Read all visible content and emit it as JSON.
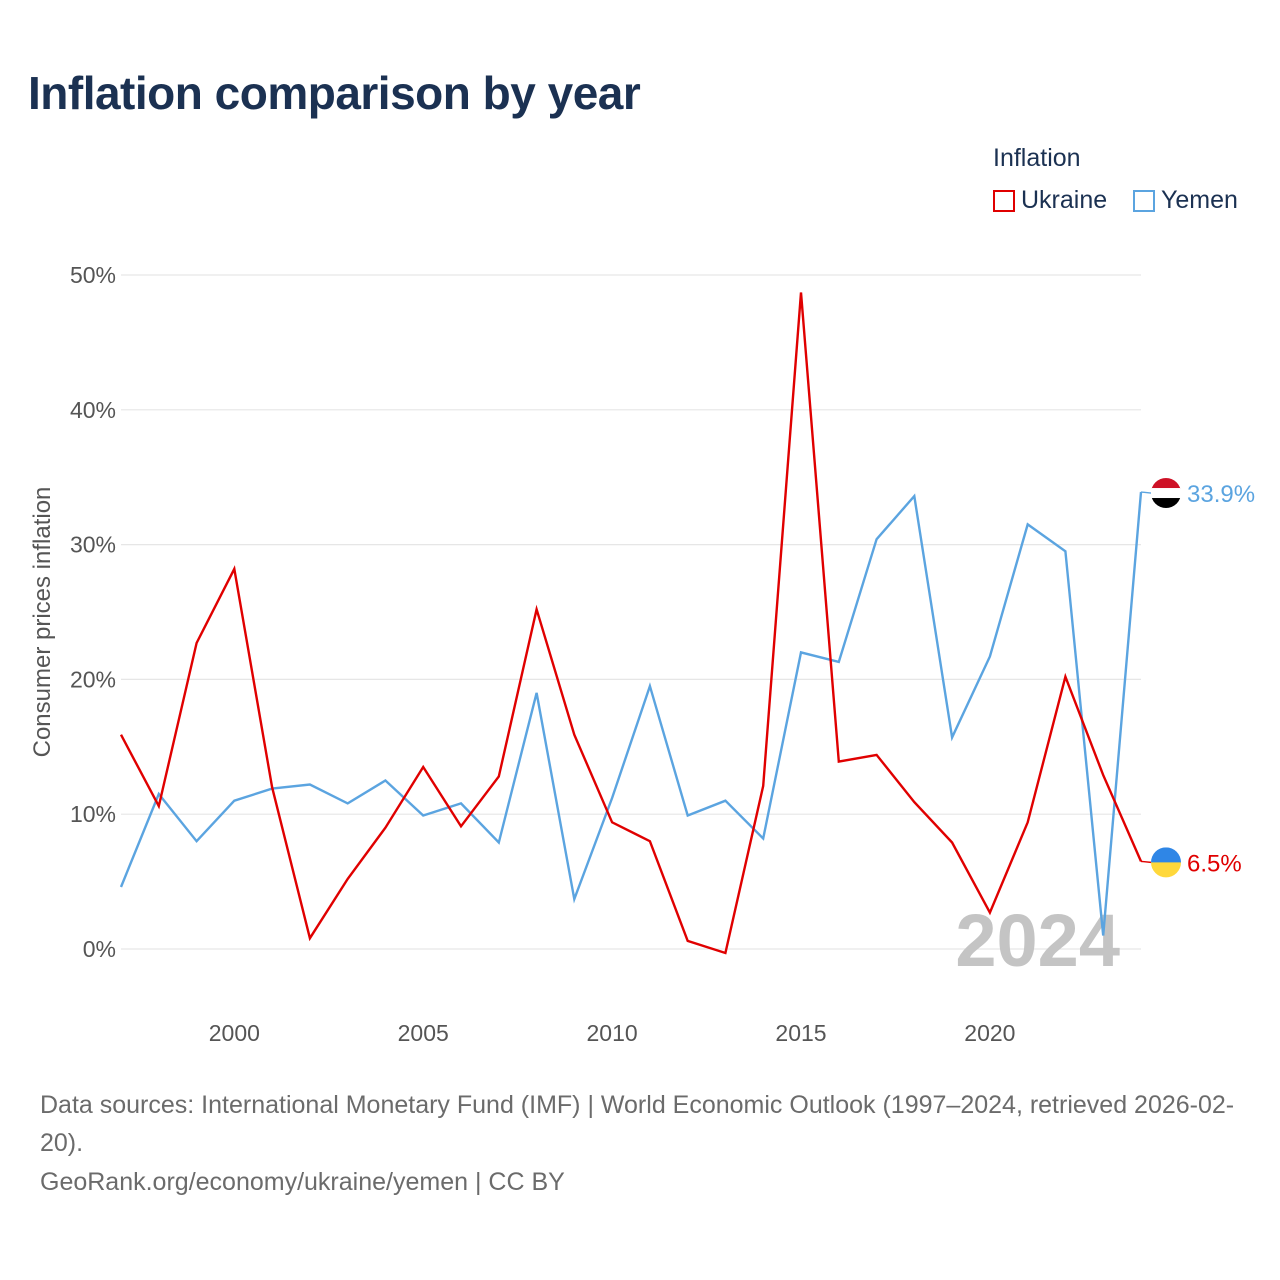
{
  "chart_data": {
    "type": "line",
    "title": "Inflation comparison by year",
    "ylabel": "Consumer prices inflation",
    "xlabel": "",
    "legend_title": "Inflation",
    "x": [
      1997,
      1998,
      1999,
      2000,
      2001,
      2002,
      2003,
      2004,
      2005,
      2006,
      2007,
      2008,
      2009,
      2010,
      2011,
      2012,
      2013,
      2014,
      2015,
      2016,
      2017,
      2018,
      2019,
      2020,
      2021,
      2022,
      2023,
      2024
    ],
    "xlim": [
      1997,
      2024
    ],
    "ylim": [
      -5,
      50
    ],
    "x_ticks": [
      2000,
      2005,
      2010,
      2015,
      2020
    ],
    "x_tick_labels": [
      "2000",
      "2005",
      "2010",
      "2015",
      "2020"
    ],
    "y_ticks": [
      0,
      10,
      20,
      30,
      40,
      50
    ],
    "y_tick_labels": [
      "0%",
      "10%",
      "20%",
      "30%",
      "40%",
      "50%"
    ],
    "year_watermark": "2024",
    "series": [
      {
        "name": "Ukraine",
        "color": "#e00000",
        "values": [
          15.9,
          10.6,
          22.7,
          28.2,
          12.0,
          0.8,
          5.2,
          9.0,
          13.5,
          9.1,
          12.8,
          25.2,
          15.9,
          9.4,
          8.0,
          0.6,
          -0.3,
          12.1,
          48.7,
          13.9,
          14.4,
          10.9,
          7.9,
          2.7,
          9.4,
          20.2,
          12.9,
          6.5
        ],
        "end_label": "6.5%"
      },
      {
        "name": "Yemen",
        "color": "#5ba4e0",
        "values": [
          4.6,
          11.5,
          8.0,
          11.0,
          11.9,
          12.2,
          10.8,
          12.5,
          9.9,
          10.8,
          7.9,
          19.0,
          3.7,
          11.2,
          19.5,
          9.9,
          11.0,
          8.2,
          22.0,
          21.3,
          30.4,
          33.6,
          15.7,
          21.7,
          31.5,
          29.5,
          1.0,
          33.9
        ],
        "end_label": "33.9%"
      }
    ]
  },
  "footer": {
    "sources_line": "Data sources: International Monetary Fund (IMF) | World Economic Outlook (1997–2024, retrieved 2026-02-20).",
    "credit_line": "GeoRank.org/economy/ukraine/yemen | CC BY"
  },
  "colors": {
    "title": "#1b3152",
    "grid": "#e6e6e6",
    "axis_text": "#555555",
    "watermark": "#c4c4c4",
    "flag_yemen": [
      "#ce1126",
      "#ffffff",
      "#000000"
    ],
    "flag_ukraine": [
      "#2f86e6",
      "#ffd83b"
    ]
  }
}
